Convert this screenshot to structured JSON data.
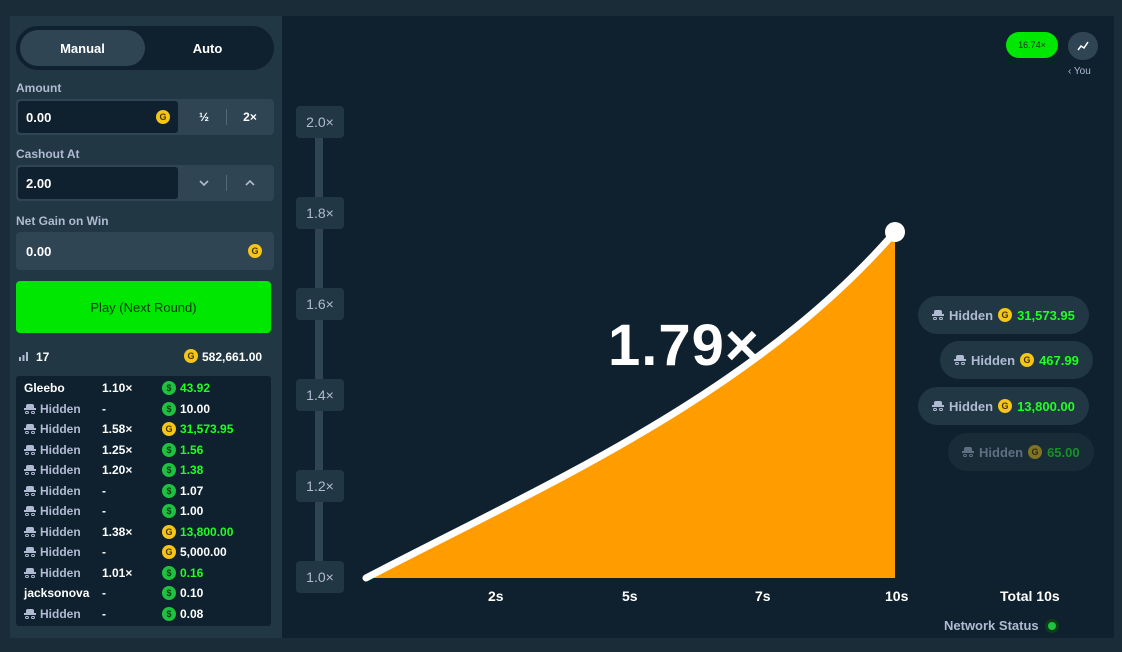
{
  "bet_panel": {
    "tabs": [
      {
        "label": "Manual",
        "active": true
      },
      {
        "label": "Auto",
        "active": false
      }
    ],
    "amount": {
      "label": "Amount",
      "value": "0.00",
      "half_label": "½",
      "double_label": "2×"
    },
    "cashout": {
      "label": "Cashout At",
      "value": "2.00"
    },
    "net_gain": {
      "label": "Net Gain on Win",
      "value": "0.00"
    },
    "play_button": "Play (Next Round)",
    "player_count": "17",
    "total_bet": "582,661.00"
  },
  "players": [
    {
      "name": "Gleebo",
      "hidden": false,
      "multiplier": "1.10×",
      "coin": "green",
      "amount": "43.92",
      "won": true
    },
    {
      "name": "Hidden",
      "hidden": true,
      "multiplier": "-",
      "coin": "green",
      "amount": "10.00",
      "won": false
    },
    {
      "name": "Hidden",
      "hidden": true,
      "multiplier": "1.58×",
      "coin": "gold",
      "amount": "31,573.95",
      "won": true
    },
    {
      "name": "Hidden",
      "hidden": true,
      "multiplier": "1.25×",
      "coin": "green",
      "amount": "1.56",
      "won": true
    },
    {
      "name": "Hidden",
      "hidden": true,
      "multiplier": "1.20×",
      "coin": "green",
      "amount": "1.38",
      "won": true
    },
    {
      "name": "Hidden",
      "hidden": true,
      "multiplier": "-",
      "coin": "green",
      "amount": "1.07",
      "won": false
    },
    {
      "name": "Hidden",
      "hidden": true,
      "multiplier": "-",
      "coin": "green",
      "amount": "1.00",
      "won": false
    },
    {
      "name": "Hidden",
      "hidden": true,
      "multiplier": "1.38×",
      "coin": "gold",
      "amount": "13,800.00",
      "won": true
    },
    {
      "name": "Hidden",
      "hidden": true,
      "multiplier": "-",
      "coin": "gold",
      "amount": "5,000.00",
      "won": false
    },
    {
      "name": "Hidden",
      "hidden": true,
      "multiplier": "1.01×",
      "coin": "green",
      "amount": "0.16",
      "won": true
    },
    {
      "name": "jacksonova",
      "hidden": false,
      "multiplier": "-",
      "coin": "green",
      "amount": "0.10",
      "won": false
    },
    {
      "name": "Hidden",
      "hidden": true,
      "multiplier": "-",
      "coin": "green",
      "amount": "0.08",
      "won": false
    }
  ],
  "game": {
    "current_multiplier": "1.79×",
    "last_result_badge": "16.74×",
    "you_label": "‹ You",
    "y_labels": [
      "2.0×",
      "1.8×",
      "1.6×",
      "1.4×",
      "1.2×",
      "1.0×"
    ],
    "x_labels": [
      "2s",
      "5s",
      "7s",
      "10s"
    ],
    "total_label": "Total 10s",
    "network_status": "Network Status",
    "cashout_pills": [
      {
        "name": "Hidden",
        "amount": "31,573.95",
        "opacity": 1
      },
      {
        "name": "Hidden",
        "amount": "467.99",
        "opacity": 1
      },
      {
        "name": "Hidden",
        "amount": "13,800.00",
        "opacity": 1
      },
      {
        "name": "Hidden",
        "amount": "65.00",
        "opacity": 0.5
      }
    ],
    "colors": {
      "fill": "#ff9d00",
      "curve": "#ffffff",
      "accent": "#00e701",
      "win": "#1fff20"
    }
  }
}
